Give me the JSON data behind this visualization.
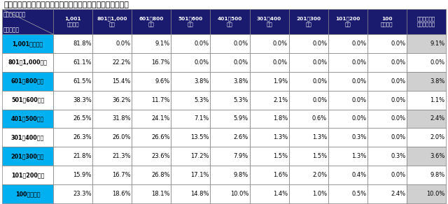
{
  "title": "結婚相手の「高収入だと感じる」年収金額（女性の年収別）",
  "col_headers": [
    "1,001\n万円以上",
    "801～1,000\n万円",
    "601～800\n万円",
    "501～600\n万円",
    "401～500\n万円",
    "301～400\n万円",
    "201～300\n万円",
    "101～200\n万円",
    "100\n万円以下",
    "わからない・\n答えたくない"
  ],
  "row_headers": [
    "1,001万円以上",
    "801～1,000万円",
    "601～800万円",
    "501～600万円",
    "401～500万円",
    "301～400万円",
    "201～300万円",
    "101～200万円",
    "100万円以下"
  ],
  "header_row1": "結婚相手の年収",
  "header_row2": "女性の年収",
  "data": [
    [
      "81.8%",
      "0.0%",
      "9.1%",
      "0.0%",
      "0.0%",
      "0.0%",
      "0.0%",
      "0.0%",
      "0.0%",
      "9.1%"
    ],
    [
      "61.1%",
      "22.2%",
      "16.7%",
      "0.0%",
      "0.0%",
      "0.0%",
      "0.0%",
      "0.0%",
      "0.0%",
      "0.0%"
    ],
    [
      "61.5%",
      "15.4%",
      "9.6%",
      "3.8%",
      "3.8%",
      "1.9%",
      "0.0%",
      "0.0%",
      "0.0%",
      "3.8%"
    ],
    [
      "38.3%",
      "36.2%",
      "11.7%",
      "5.3%",
      "5.3%",
      "2.1%",
      "0.0%",
      "0.0%",
      "0.0%",
      "1.1%"
    ],
    [
      "26.5%",
      "31.8%",
      "24.1%",
      "7.1%",
      "5.9%",
      "1.8%",
      "0.6%",
      "0.0%",
      "0.0%",
      "2.4%"
    ],
    [
      "26.3%",
      "26.0%",
      "26.6%",
      "13.5%",
      "2.6%",
      "1.3%",
      "1.3%",
      "0.3%",
      "0.0%",
      "2.0%"
    ],
    [
      "21.8%",
      "21.3%",
      "23.6%",
      "17.2%",
      "7.9%",
      "1.5%",
      "1.5%",
      "1.3%",
      "0.3%",
      "3.6%"
    ],
    [
      "15.9%",
      "16.7%",
      "26.8%",
      "17.1%",
      "9.8%",
      "1.6%",
      "2.0%",
      "0.4%",
      "0.0%",
      "9.8%"
    ],
    [
      "23.3%",
      "18.6%",
      "18.1%",
      "14.8%",
      "10.0%",
      "1.4%",
      "1.0%",
      "0.5%",
      "2.4%",
      "10.0%"
    ]
  ],
  "header_bg": "#1a1a6e",
  "header_tc": "#ffffff",
  "cyan_bg": "#00b0f0",
  "cyan_tc": "#000000",
  "white_bg": "#ffffff",
  "white_tc": "#000000",
  "gray_bg": "#d0d0d0",
  "gray_tc": "#000000",
  "border_color": "#808080",
  "title_color": "#000000",
  "cyan_rows": [
    0,
    2,
    4,
    6,
    8
  ],
  "gray_last_col_rows": [
    0,
    2,
    4,
    6,
    8
  ]
}
